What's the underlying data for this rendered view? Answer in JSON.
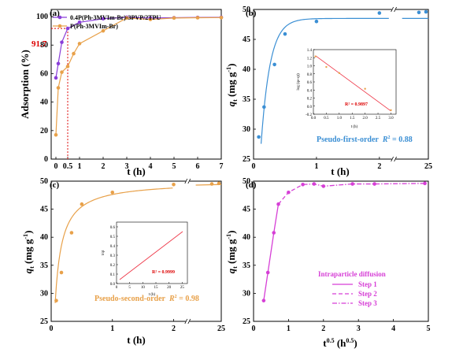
{
  "chart_data": [
    {
      "panel": "(a)",
      "type": "line",
      "xlabel": "t (h)",
      "ylabel_html": [
        "Adsorption (%)"
      ],
      "xlim": [
        -0.2,
        7
      ],
      "ylim": [
        0,
        105
      ],
      "xticks": [
        "0",
        "0.5",
        "1",
        "2",
        "3",
        "4",
        "5",
        "6",
        "7"
      ],
      "yticks": [
        "0",
        "20",
        "40",
        "60",
        "80",
        "100"
      ],
      "legend_position": "top-left",
      "annotation_y": "91.7",
      "annotation_x": "0.5",
      "series": [
        {
          "name": "0.4P(Ph-3MVIm-Br)-3PVP/2TPU",
          "color": "#8a3fd9",
          "x": [
            0,
            0.1,
            0.25,
            0.5,
            1,
            2,
            3,
            4,
            5,
            6,
            7
          ],
          "y": [
            57,
            67,
            82,
            91.7,
            96,
            98.5,
            99.5,
            99,
            99.2,
            99.4,
            99.5
          ]
        },
        {
          "name": "P(Ph-3MVIm-Br)",
          "color": "#e8a14a",
          "x": [
            0,
            0.1,
            0.25,
            0.5,
            0.75,
            1,
            2,
            3,
            4,
            5,
            6,
            7
          ],
          "y": [
            17,
            50,
            61,
            65,
            74,
            81,
            90,
            99,
            98,
            99,
            99.2,
            99.3
          ]
        }
      ]
    },
    {
      "panel": "(b)",
      "type": "scatter",
      "xlabel": "t (h)",
      "ylabel_main": "q",
      "ylabel_sub": "t",
      "ylabel_unit": " (mg g",
      "ylabel_sup": "-1",
      "ylabel_end": ")",
      "xlim": [
        0,
        25
      ],
      "ylim": [
        25,
        50
      ],
      "xticks": [
        "0",
        "1",
        "2",
        "25"
      ],
      "yticks": [
        "25",
        "30",
        "35",
        "40",
        "45",
        "50"
      ],
      "color": "#3b8fd4",
      "points": {
        "x": [
          0.083,
          0.167,
          0.333,
          0.5,
          1,
          2,
          24,
          25
        ],
        "y": [
          28.7,
          33.7,
          40.8,
          45.9,
          48.0,
          49.4,
          49.5,
          49.6
        ]
      },
      "fit_label": "Pseudo-first-order",
      "r2_label": "R",
      "r2_value": " = 0.88",
      "inset": {
        "xlabel": "t (h)",
        "ylabel": "log (qe-qt)",
        "xticks": [
          "0.0",
          "0.5",
          "1.0",
          "1.5",
          "2.0",
          "2.5",
          "3.0"
        ],
        "yticks": [
          "-0.2",
          "0.0",
          "0.2",
          "0.4",
          "0.6",
          "0.8",
          "1.0",
          "1.2",
          "1.4"
        ],
        "r2": "R² = 0.9897",
        "points": {
          "x": [
            0.08,
            0.5,
            1.0,
            2.0,
            3.0
          ],
          "y": [
            1.23,
            0.97,
            0.82,
            0.43,
            -0.1
          ]
        }
      }
    },
    {
      "panel": "(c)",
      "type": "scatter",
      "xlabel": "t (h)",
      "ylabel_main": "q",
      "ylabel_sub": "t",
      "ylabel_unit": " (mg g",
      "ylabel_sup": "-1",
      "ylabel_end": ")",
      "xlim": [
        0,
        25
      ],
      "ylim": [
        25,
        50
      ],
      "xticks": [
        "0",
        "1",
        "2",
        "25"
      ],
      "yticks": [
        "25",
        "30",
        "35",
        "40",
        "45",
        "50"
      ],
      "color": "#e8a14a",
      "points": {
        "x": [
          0.083,
          0.167,
          0.333,
          0.5,
          1,
          2,
          24,
          25
        ],
        "y": [
          28.7,
          33.7,
          40.8,
          45.9,
          48.0,
          49.4,
          49.5,
          49.6
        ]
      },
      "fit_label": "Pseudo-second-order",
      "r2_label": "R",
      "r2_value": " = 0.98",
      "inset": {
        "xlabel": "t (h)",
        "ylabel": "t/qt",
        "xticks": [
          "0",
          "5",
          "10",
          "15",
          "20",
          "25"
        ],
        "yticks": [
          "0.0",
          "0.1",
          "0.2",
          "0.3",
          "0.4",
          "0.5",
          "0.6"
        ],
        "r2": "R² = 0.9999"
      }
    },
    {
      "panel": "(d)",
      "type": "line",
      "xlabel_main": "t",
      "xlabel_sup": "0.5",
      "xlabel_unit": " (h",
      "xlabel_unit_sup": "0.5",
      "xlabel_end": ")",
      "ylabel_main": "q",
      "ylabel_sub": "t",
      "ylabel_unit": " (mg g",
      "ylabel_sup": "-1",
      "ylabel_end": ")",
      "xlim": [
        0,
        5
      ],
      "ylim": [
        25,
        50
      ],
      "xticks": [
        "0",
        "1",
        "2",
        "3",
        "4",
        "5"
      ],
      "yticks": [
        "25",
        "30",
        "35",
        "40",
        "45",
        "50"
      ],
      "color": "#d63fd6",
      "points": {
        "x": [
          0.29,
          0.41,
          0.58,
          0.71,
          1.0,
          1.41,
          1.73,
          2.0,
          2.83,
          3.46,
          4.9
        ],
        "y": [
          28.7,
          33.7,
          40.8,
          45.9,
          48.0,
          49.4,
          49.5,
          49.1,
          49.5,
          49.5,
          49.6
        ]
      },
      "legend_title": "Intraparticle diffusion",
      "legend": [
        "Step 1",
        "Step 2",
        "Step 3"
      ]
    }
  ]
}
